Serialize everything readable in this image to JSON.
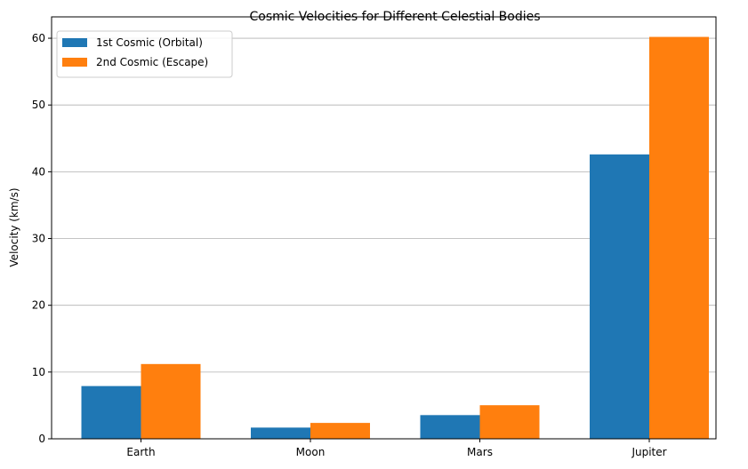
{
  "chart_data": {
    "type": "bar",
    "title": "Cosmic Velocities for Different Celestial Bodies",
    "xlabel": "",
    "ylabel": "Velocity (km/s)",
    "categories": [
      "Earth",
      "Moon",
      "Mars",
      "Jupiter"
    ],
    "series": [
      {
        "name": "1st Cosmic (Orbital)",
        "color": "#1f77b4",
        "values": [
          7.9,
          1.68,
          3.55,
          42.6
        ]
      },
      {
        "name": "2nd Cosmic (Escape)",
        "color": "#ff7f0e",
        "values": [
          11.2,
          2.38,
          5.03,
          60.2
        ]
      }
    ],
    "ylim": [
      0,
      63.2
    ],
    "yticks": [
      0,
      10,
      20,
      30,
      40,
      50,
      60
    ],
    "grid": "y",
    "legend": "top-left"
  }
}
